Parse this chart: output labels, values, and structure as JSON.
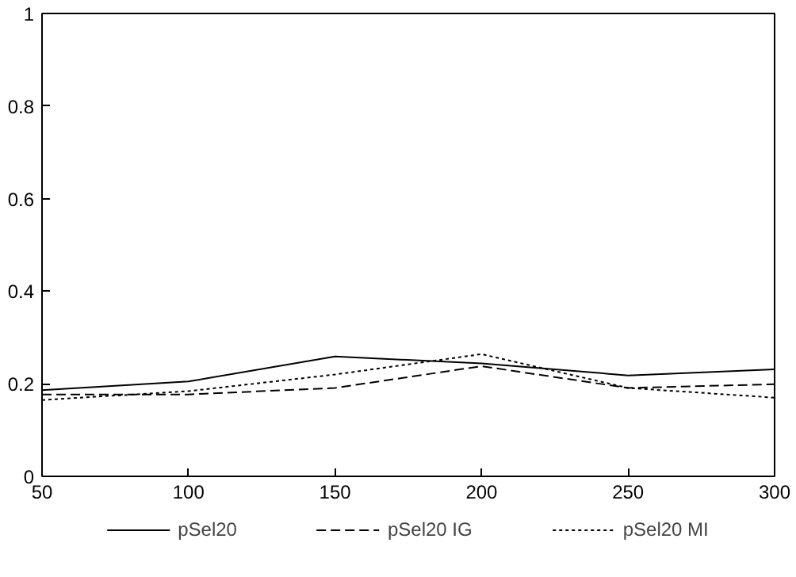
{
  "chart_data": {
    "type": "line",
    "x": [
      50,
      100,
      150,
      200,
      250,
      300
    ],
    "series": [
      {
        "name": "pSel20",
        "color": "#000000",
        "line_style": "solid",
        "values": [
          0.186,
          0.205,
          0.259,
          0.244,
          0.218,
          0.231
        ]
      },
      {
        "name": "pSel20 IG",
        "color": "#000000",
        "line_style": "dashed",
        "values": [
          0.177,
          0.177,
          0.191,
          0.238,
          0.191,
          0.199
        ]
      },
      {
        "name": "pSel20 MI",
        "color": "#000000",
        "line_style": "dotted",
        "values": [
          0.165,
          0.184,
          0.22,
          0.264,
          0.191,
          0.17
        ]
      }
    ],
    "xlim": [
      50,
      300
    ],
    "xticks": [
      50,
      100,
      150,
      200,
      250,
      300
    ],
    "ylim": [
      0,
      1
    ],
    "yticks": [
      0,
      0.2,
      0.4,
      0.6,
      0.8,
      1
    ],
    "grid": false,
    "legend": "bottom",
    "marker": "none"
  }
}
